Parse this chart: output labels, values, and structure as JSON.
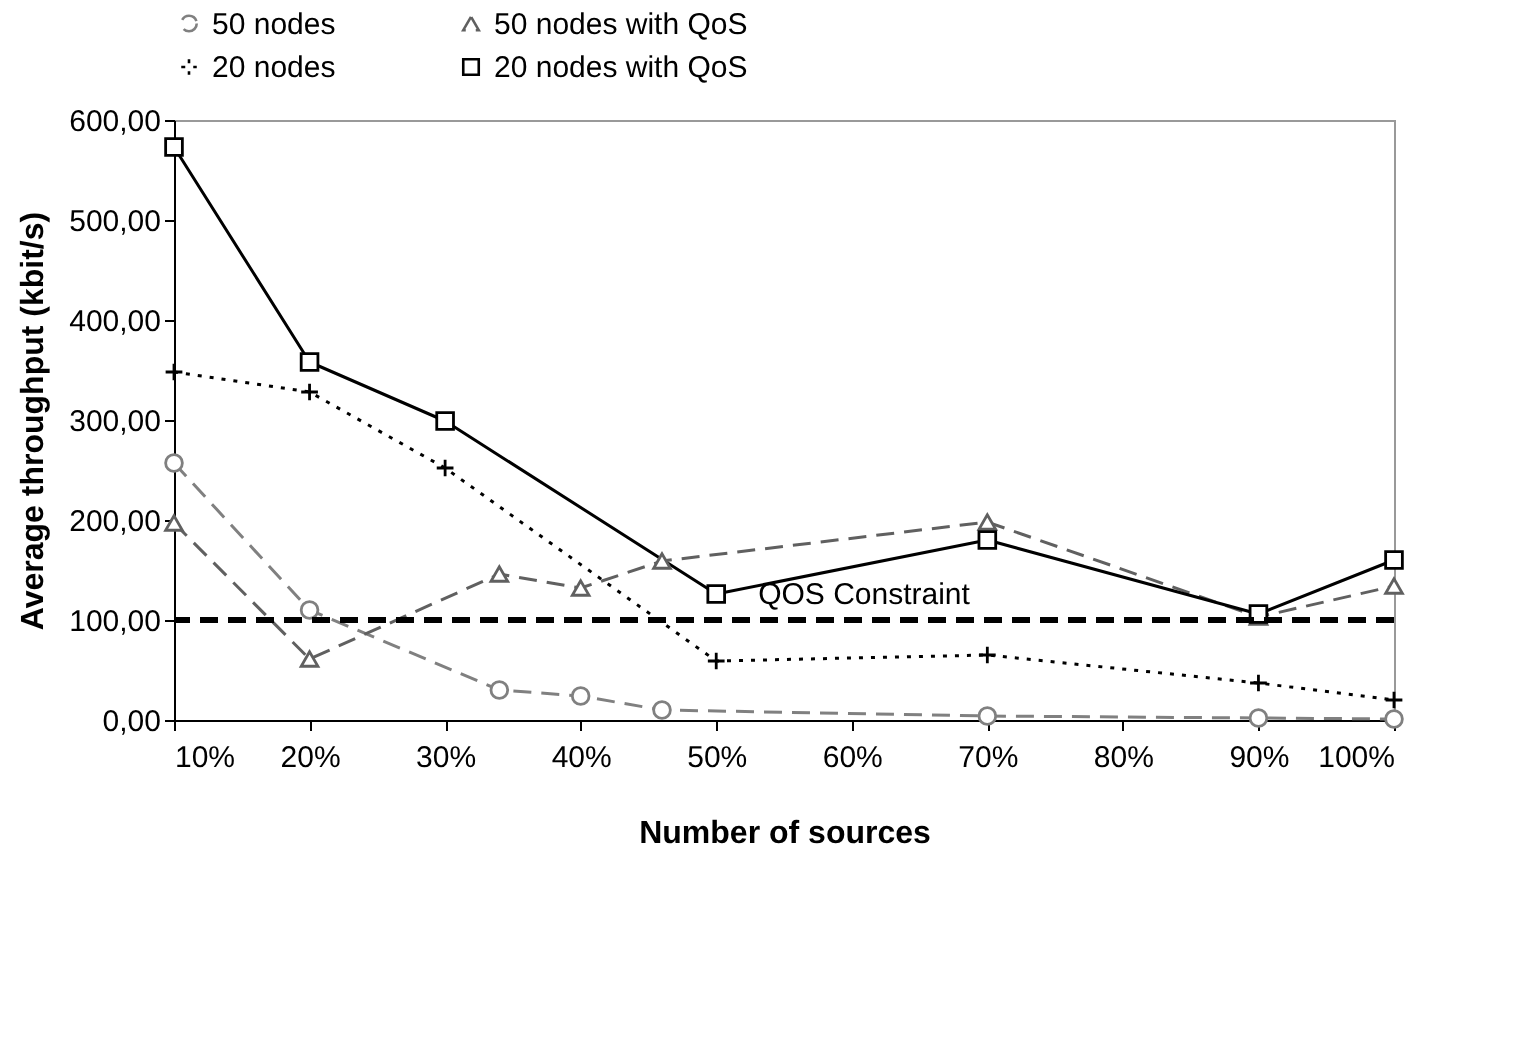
{
  "chart_data": {
    "type": "line",
    "xlabel": "Number of sources",
    "ylabel": "Average throughput (kbit/s)",
    "xlim": [
      10,
      100
    ],
    "xticks": [
      {
        "value": 10,
        "label": "10%"
      },
      {
        "value": 20,
        "label": "20%"
      },
      {
        "value": 30,
        "label": "30%"
      },
      {
        "value": 40,
        "label": "40%"
      },
      {
        "value": 50,
        "label": "50%"
      },
      {
        "value": 60,
        "label": "60%"
      },
      {
        "value": 70,
        "label": "70%"
      },
      {
        "value": 80,
        "label": "80%"
      },
      {
        "value": 90,
        "label": "90%"
      },
      {
        "value": 100,
        "label": "100%"
      }
    ],
    "ylim": [
      0,
      600
    ],
    "yticks": [
      {
        "value": 0,
        "label": "0,00"
      },
      {
        "value": 100,
        "label": "100,00"
      },
      {
        "value": 200,
        "label": "200,00"
      },
      {
        "value": 300,
        "label": "300,00"
      },
      {
        "value": 400,
        "label": "400,00"
      },
      {
        "value": 500,
        "label": "500,00"
      },
      {
        "value": 600,
        "label": "600,00"
      }
    ],
    "legend": "top",
    "series": [
      {
        "name": "50 nodes",
        "color": "#808080",
        "marker": "circle",
        "line_style": "dashed",
        "x": [
          10,
          20,
          34,
          40,
          46,
          70,
          90,
          100
        ],
        "values": [
          257,
          110,
          30,
          24,
          10,
          4,
          2,
          1
        ]
      },
      {
        "name": "50 nodes with QoS",
        "color": "#606060",
        "marker": "triangle",
        "line_style": "dashed",
        "x": [
          10,
          20,
          34,
          40,
          46,
          70,
          90,
          100
        ],
        "values": [
          197,
          61,
          146,
          132,
          159,
          198,
          103,
          134
        ]
      },
      {
        "name": "20 nodes",
        "color": "#000000",
        "marker": "cross",
        "line_style": "dotted",
        "x": [
          10,
          20,
          30,
          50,
          70,
          90,
          100
        ],
        "values": [
          348,
          328,
          252,
          59,
          65,
          37,
          20
        ]
      },
      {
        "name": "20 nodes with QoS",
        "color": "#000000",
        "marker": "square",
        "line_style": "solid",
        "x": [
          10,
          20,
          30,
          50,
          70,
          90,
          100
        ],
        "values": [
          573,
          358,
          299,
          126,
          180,
          106,
          160
        ]
      }
    ],
    "ref_lines": [
      {
        "axis": "y",
        "value": 100,
        "label": "QOS Constraint",
        "color": "#000000",
        "line_style": "dashed"
      }
    ]
  }
}
